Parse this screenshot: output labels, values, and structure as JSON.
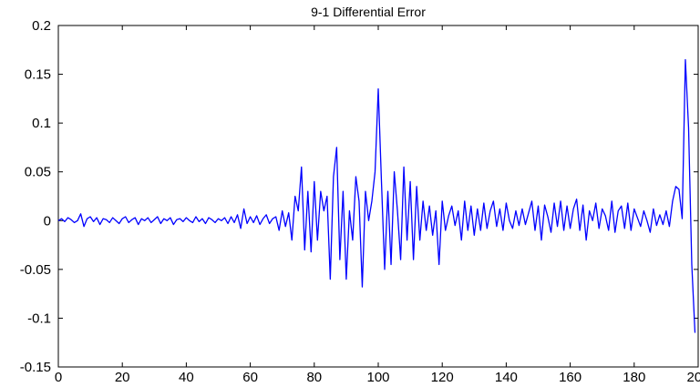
{
  "chart_data": {
    "type": "line",
    "title": "9-1 Differential Error",
    "xlabel": "",
    "ylabel": "",
    "xlim": [
      0,
      200
    ],
    "ylim": [
      -0.15,
      0.2
    ],
    "grid": false,
    "line_color": "#0000ff",
    "x_ticks": [
      0,
      20,
      40,
      60,
      80,
      100,
      120,
      140,
      160,
      180,
      200
    ],
    "x_tick_labels": [
      "0",
      "20",
      "40",
      "60",
      "80",
      "100",
      "120",
      "140",
      "160",
      "180",
      "200"
    ],
    "y_ticks": [
      -0.15,
      -0.1,
      -0.05,
      0,
      0.05,
      0.1,
      0.15,
      0.2
    ],
    "y_tick_labels": [
      "-0.15",
      "-0.1",
      "-0.05",
      "0",
      "0.05",
      "0.1",
      "0.15",
      "0.2"
    ],
    "series": [
      {
        "values": [
          0.0,
          0.002,
          -0.001,
          0.003,
          0.001,
          -0.002,
          0.0,
          0.007,
          -0.006,
          0.002,
          0.004,
          -0.001,
          0.003,
          -0.004,
          0.002,
          0.001,
          -0.002,
          0.003,
          0.0,
          -0.003,
          0.002,
          0.004,
          -0.002,
          0.001,
          0.003,
          -0.004,
          0.002,
          0.0,
          0.003,
          -0.002,
          0.001,
          0.004,
          -0.003,
          0.002,
          0.0,
          0.003,
          -0.004,
          0.001,
          0.002,
          -0.001,
          0.003,
          0.0,
          -0.002,
          0.004,
          -0.001,
          0.002,
          -0.003,
          0.003,
          0.001,
          -0.002,
          0.002,
          0.0,
          0.003,
          -0.003,
          0.004,
          -0.002,
          0.006,
          -0.008,
          0.012,
          -0.003,
          0.004,
          -0.002,
          0.005,
          -0.004,
          0.002,
          0.006,
          -0.003,
          0.002,
          0.004,
          -0.01,
          0.01,
          -0.006,
          0.008,
          -0.02,
          0.025,
          0.01,
          0.055,
          -0.03,
          0.03,
          -0.032,
          0.04,
          -0.02,
          0.03,
          0.01,
          0.025,
          -0.06,
          0.045,
          0.075,
          -0.04,
          0.03,
          -0.06,
          0.01,
          -0.02,
          0.045,
          0.02,
          -0.068,
          0.03,
          0.0,
          0.02,
          0.05,
          0.135,
          0.04,
          -0.05,
          0.03,
          -0.045,
          0.05,
          0.01,
          -0.04,
          0.055,
          -0.02,
          0.04,
          -0.04,
          0.035,
          -0.02,
          0.02,
          -0.01,
          0.015,
          -0.015,
          0.01,
          -0.045,
          0.02,
          -0.01,
          0.005,
          0.015,
          -0.005,
          0.01,
          -0.02,
          0.02,
          -0.01,
          0.015,
          -0.015,
          0.012,
          -0.01,
          0.018,
          -0.008,
          0.01,
          0.02,
          -0.006,
          0.012,
          -0.01,
          0.018,
          0.0,
          -0.008,
          0.01,
          -0.005,
          0.012,
          -0.004,
          0.008,
          0.02,
          -0.01,
          0.015,
          -0.02,
          0.016,
          0.004,
          -0.012,
          0.018,
          -0.006,
          0.02,
          -0.01,
          0.015,
          -0.008,
          0.012,
          0.022,
          -0.01,
          0.016,
          -0.02,
          0.01,
          0.0,
          0.018,
          -0.008,
          0.012,
          0.005,
          -0.01,
          0.02,
          -0.012,
          0.01,
          0.015,
          -0.008,
          0.018,
          -0.01,
          0.012,
          0.003,
          -0.006,
          0.01,
          0.0,
          -0.012,
          0.012,
          -0.005,
          0.006,
          -0.004,
          0.01,
          -0.006,
          0.02,
          0.035,
          0.032,
          0.002,
          0.165,
          0.095,
          -0.045,
          -0.115
        ]
      }
    ]
  }
}
